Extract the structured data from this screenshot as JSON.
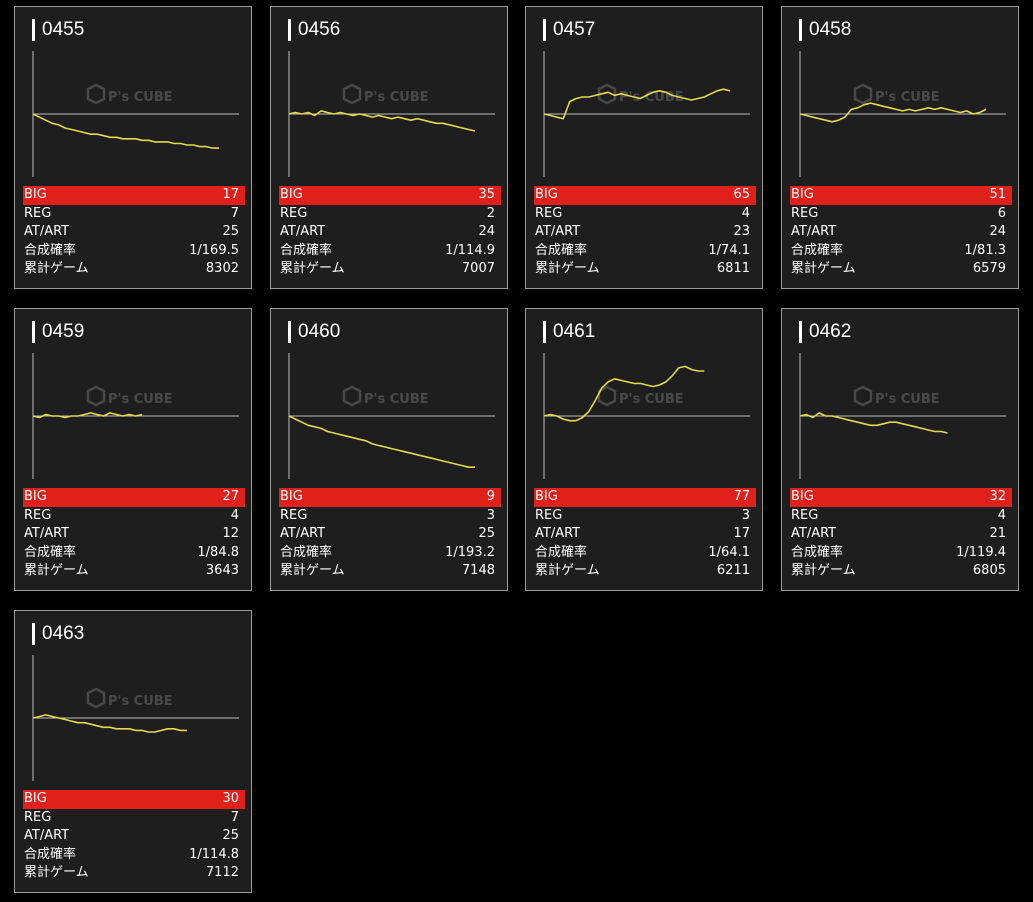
{
  "labels": {
    "big": "BIG",
    "reg": "REG",
    "at": "AT/ART",
    "rate": "合成確率",
    "games": "累計ゲーム"
  },
  "colors": {
    "accent_red": "#e0211b",
    "graph_line": "#e6d84a",
    "card_bg": "#1e1e1e",
    "border": "#9a9a9a"
  },
  "machines": [
    {
      "id": "0455",
      "big": "17",
      "reg": "7",
      "at": "25",
      "rate": "1/169.5",
      "games": "8302",
      "trend": [
        0,
        -2,
        -4,
        -6,
        -7,
        -9,
        -10,
        -11,
        -12,
        -13,
        -13,
        -14,
        -15,
        -15,
        -16,
        -16,
        -16,
        -17,
        -17,
        -18,
        -18,
        -18,
        -19,
        -19,
        -20,
        -20,
        -21,
        -21,
        -22,
        -22
      ]
    },
    {
      "id": "0456",
      "big": "35",
      "reg": "2",
      "at": "24",
      "rate": "1/114.9",
      "games": "7007",
      "trend": [
        0,
        1,
        0,
        1,
        -1,
        2,
        1,
        0,
        1,
        0,
        -1,
        0,
        -1,
        -2,
        -1,
        -2,
        -3,
        -2,
        -3,
        -4,
        -3,
        -4,
        -5,
        -6,
        -6,
        -7,
        -8,
        -9,
        -10,
        -11
      ]
    },
    {
      "id": "0457",
      "big": "65",
      "reg": "4",
      "at": "23",
      "rate": "1/74.1",
      "games": "6811",
      "trend": [
        0,
        -1,
        -2,
        -3,
        8,
        10,
        11,
        11,
        12,
        13,
        14,
        12,
        13,
        12,
        11,
        10,
        12,
        14,
        15,
        14,
        12,
        11,
        10,
        9,
        10,
        11,
        13,
        15,
        16,
        15
      ]
    },
    {
      "id": "0458",
      "big": "51",
      "reg": "6",
      "at": "24",
      "rate": "1/81.3",
      "games": "6579",
      "trend": [
        0,
        -1,
        -2,
        -3,
        -4,
        -5,
        -4,
        -2,
        3,
        4,
        6,
        7,
        6,
        5,
        4,
        3,
        2,
        3,
        2,
        3,
        4,
        3,
        4,
        3,
        2,
        1,
        2,
        0,
        1,
        3
      ]
    },
    {
      "id": "0459",
      "big": "27",
      "reg": "4",
      "at": "12",
      "rate": "1/84.8",
      "games": "3643",
      "trend": [
        0,
        -1,
        1,
        0,
        0,
        -1,
        0,
        0,
        1,
        2,
        1,
        0,
        2,
        1,
        0,
        1,
        0,
        1
      ]
    },
    {
      "id": "0460",
      "big": "9",
      "reg": "3",
      "at": "25",
      "rate": "1/193.2",
      "games": "7148",
      "trend": [
        0,
        -2,
        -4,
        -6,
        -7,
        -8,
        -10,
        -11,
        -12,
        -13,
        -14,
        -15,
        -16,
        -18,
        -19,
        -20,
        -21,
        -22,
        -23,
        -24,
        -25,
        -26,
        -27,
        -28,
        -29,
        -30,
        -31,
        -32,
        -33,
        -33
      ]
    },
    {
      "id": "0461",
      "big": "77",
      "reg": "3",
      "at": "17",
      "rate": "1/64.1",
      "games": "6211",
      "trend": [
        0,
        1,
        0,
        -2,
        -3,
        -3,
        -1,
        3,
        10,
        18,
        22,
        24,
        23,
        22,
        21,
        21,
        20,
        19,
        20,
        22,
        26,
        31,
        32,
        30,
        29,
        29
      ]
    },
    {
      "id": "0462",
      "big": "32",
      "reg": "4",
      "at": "21",
      "rate": "1/119.4",
      "games": "6805",
      "trend": [
        0,
        1,
        -1,
        2,
        0,
        0,
        -1,
        -2,
        -3,
        -4,
        -5,
        -6,
        -6,
        -5,
        -4,
        -4,
        -5,
        -6,
        -7,
        -8,
        -9,
        -10,
        -10,
        -11
      ]
    },
    {
      "id": "0463",
      "big": "30",
      "reg": "7",
      "at": "25",
      "rate": "1/114.8",
      "games": "7112",
      "trend": [
        0,
        1,
        2,
        1,
        0,
        -1,
        -2,
        -3,
        -3,
        -4,
        -5,
        -6,
        -6,
        -7,
        -7,
        -7,
        -8,
        -8,
        -9,
        -9,
        -8,
        -7,
        -7,
        -8,
        -8
      ]
    }
  ]
}
